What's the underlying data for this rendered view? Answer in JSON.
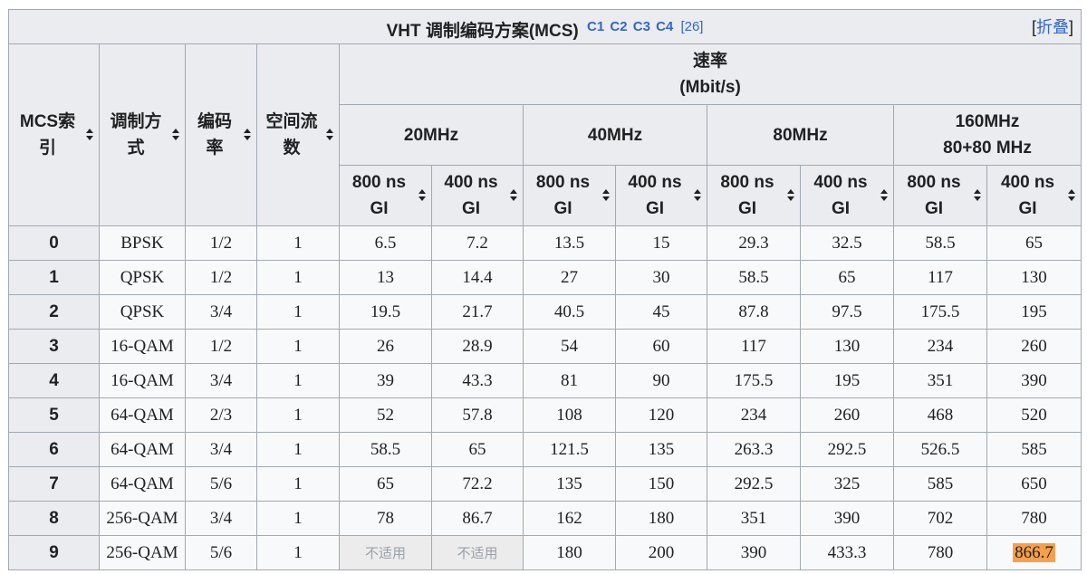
{
  "caption": {
    "title": "VHT 调制编码方案(MCS)",
    "links": [
      "C1",
      "C2",
      "C3",
      "C4"
    ],
    "ref": "[26]",
    "collapse_open": "[",
    "collapse_label": "折叠",
    "collapse_close": "]"
  },
  "headers": {
    "mcs_index": "MCS索引",
    "modulation": "调制方式",
    "coding_rate": "编码率",
    "spatial_streams": "空间流数",
    "rate_title": "速率",
    "rate_unit": "(Mbit/s)",
    "bandwidths": [
      "20MHz",
      "40MHz",
      "80MHz",
      "160MHz"
    ],
    "bw_160_sub": "80+80 MHz",
    "gi": [
      "800 ns GI",
      "400 ns GI",
      "800 ns GI",
      "400 ns GI",
      "800 ns GI",
      "400 ns GI",
      "800 ns GI",
      "400 ns GI"
    ]
  },
  "rows": [
    [
      "0",
      "BPSK",
      "1/2",
      "1",
      "6.5",
      "7.2",
      "13.5",
      "15",
      "29.3",
      "32.5",
      "58.5",
      "65"
    ],
    [
      "1",
      "QPSK",
      "1/2",
      "1",
      "13",
      "14.4",
      "27",
      "30",
      "58.5",
      "65",
      "117",
      "130"
    ],
    [
      "2",
      "QPSK",
      "3/4",
      "1",
      "19.5",
      "21.7",
      "40.5",
      "45",
      "87.8",
      "97.5",
      "175.5",
      "195"
    ],
    [
      "3",
      "16-QAM",
      "1/2",
      "1",
      "26",
      "28.9",
      "54",
      "60",
      "117",
      "130",
      "234",
      "260"
    ],
    [
      "4",
      "16-QAM",
      "3/4",
      "1",
      "39",
      "43.3",
      "81",
      "90",
      "175.5",
      "195",
      "351",
      "390"
    ],
    [
      "5",
      "64-QAM",
      "2/3",
      "1",
      "52",
      "57.8",
      "108",
      "120",
      "234",
      "260",
      "468",
      "520"
    ],
    [
      "6",
      "64-QAM",
      "3/4",
      "1",
      "58.5",
      "65",
      "121.5",
      "135",
      "263.3",
      "292.5",
      "526.5",
      "585"
    ],
    [
      "7",
      "64-QAM",
      "5/6",
      "1",
      "65",
      "72.2",
      "135",
      "150",
      "292.5",
      "325",
      "585",
      "650"
    ],
    [
      "8",
      "256-QAM",
      "3/4",
      "1",
      "78",
      "86.7",
      "162",
      "180",
      "351",
      "390",
      "702",
      "780"
    ],
    [
      "9",
      "256-QAM",
      "5/6",
      "1",
      "不适用",
      "不适用",
      "180",
      "200",
      "390",
      "433.3",
      "780",
      "866.7"
    ]
  ],
  "not_applicable_text": "不适用",
  "highlight_value": "866.7",
  "colors": {
    "header_bg": "#eaecf0",
    "cell_bg": "#f8f9fa",
    "border": "#a2a9b1",
    "link": "#3366cc",
    "highlight": "#f5a04a",
    "na_bg": "#ececec"
  }
}
